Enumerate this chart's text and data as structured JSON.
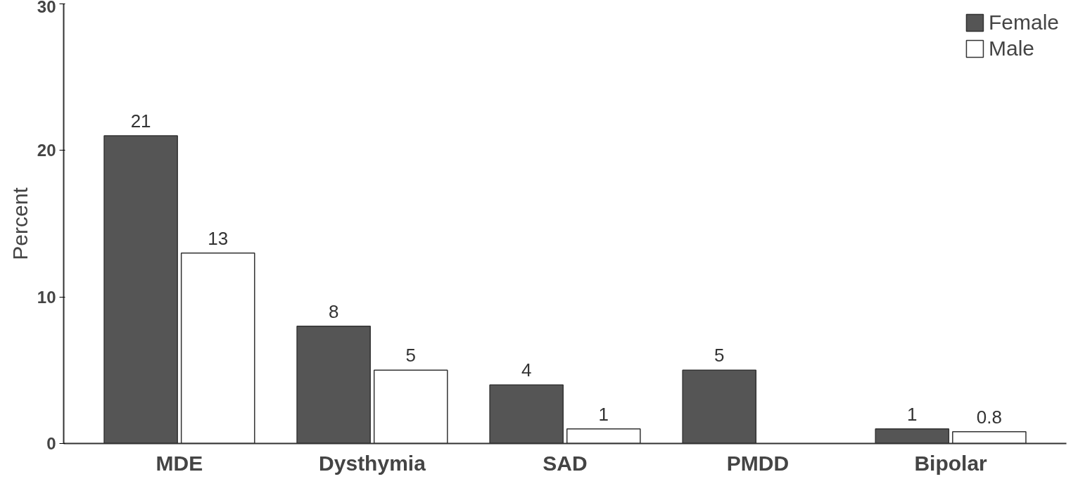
{
  "chart_data": {
    "type": "bar",
    "ylabel": "Percent",
    "categories": [
      "MDE",
      "Dysthymia",
      "SAD",
      "PMDD",
      "Bipolar"
    ],
    "series": [
      {
        "name": "Female",
        "color": "#555555",
        "values": [
          21,
          8,
          4,
          5,
          1
        ]
      },
      {
        "name": "Male",
        "color": "#ffffff",
        "values": [
          13,
          5,
          1,
          null,
          0.8
        ]
      }
    ],
    "ylim": [
      0,
      30
    ],
    "yticks": [
      0,
      10,
      20,
      30
    ],
    "data_labels": true,
    "legend": "top right",
    "grid": false
  }
}
